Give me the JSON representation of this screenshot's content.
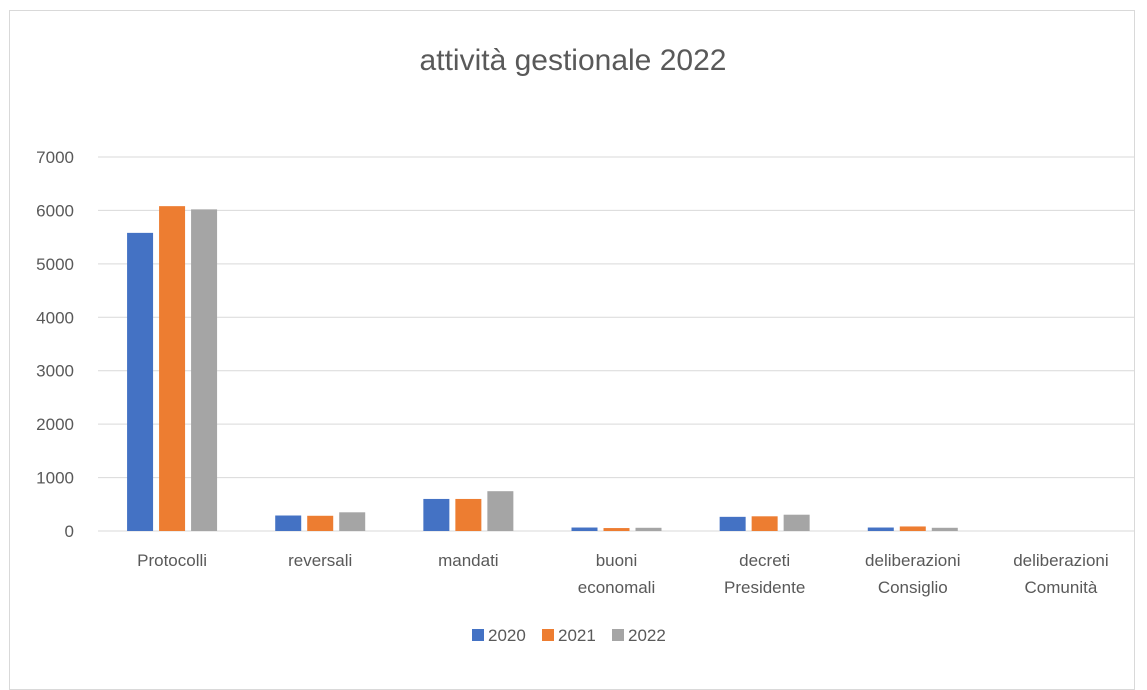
{
  "chart_data": {
    "type": "bar",
    "title": "attività gestionale 2022",
    "xlabel": "",
    "ylabel": "",
    "ylim": [
      0,
      7000
    ],
    "yticks": [
      0,
      1000,
      2000,
      3000,
      4000,
      5000,
      6000,
      7000
    ],
    "grid": true,
    "legend_position": "bottom",
    "categories": [
      [
        "Protocolli"
      ],
      [
        "reversali"
      ],
      [
        "mandati"
      ],
      [
        "buoni",
        "economali"
      ],
      [
        "decreti",
        "Presidente"
      ],
      [
        "deliberazioni",
        "Consiglio"
      ],
      [
        "deliberazioni",
        "Comunità"
      ]
    ],
    "series": [
      {
        "name": "2020",
        "color": "#4472C4",
        "values": [
          5580,
          290,
          600,
          65,
          265,
          65,
          0
        ]
      },
      {
        "name": "2021",
        "color": "#ED7D31",
        "values": [
          6080,
          285,
          600,
          55,
          275,
          85,
          0
        ]
      },
      {
        "name": "2022",
        "color": "#A5A5A5",
        "values": [
          6020,
          350,
          745,
          60,
          305,
          60,
          0
        ]
      }
    ]
  }
}
